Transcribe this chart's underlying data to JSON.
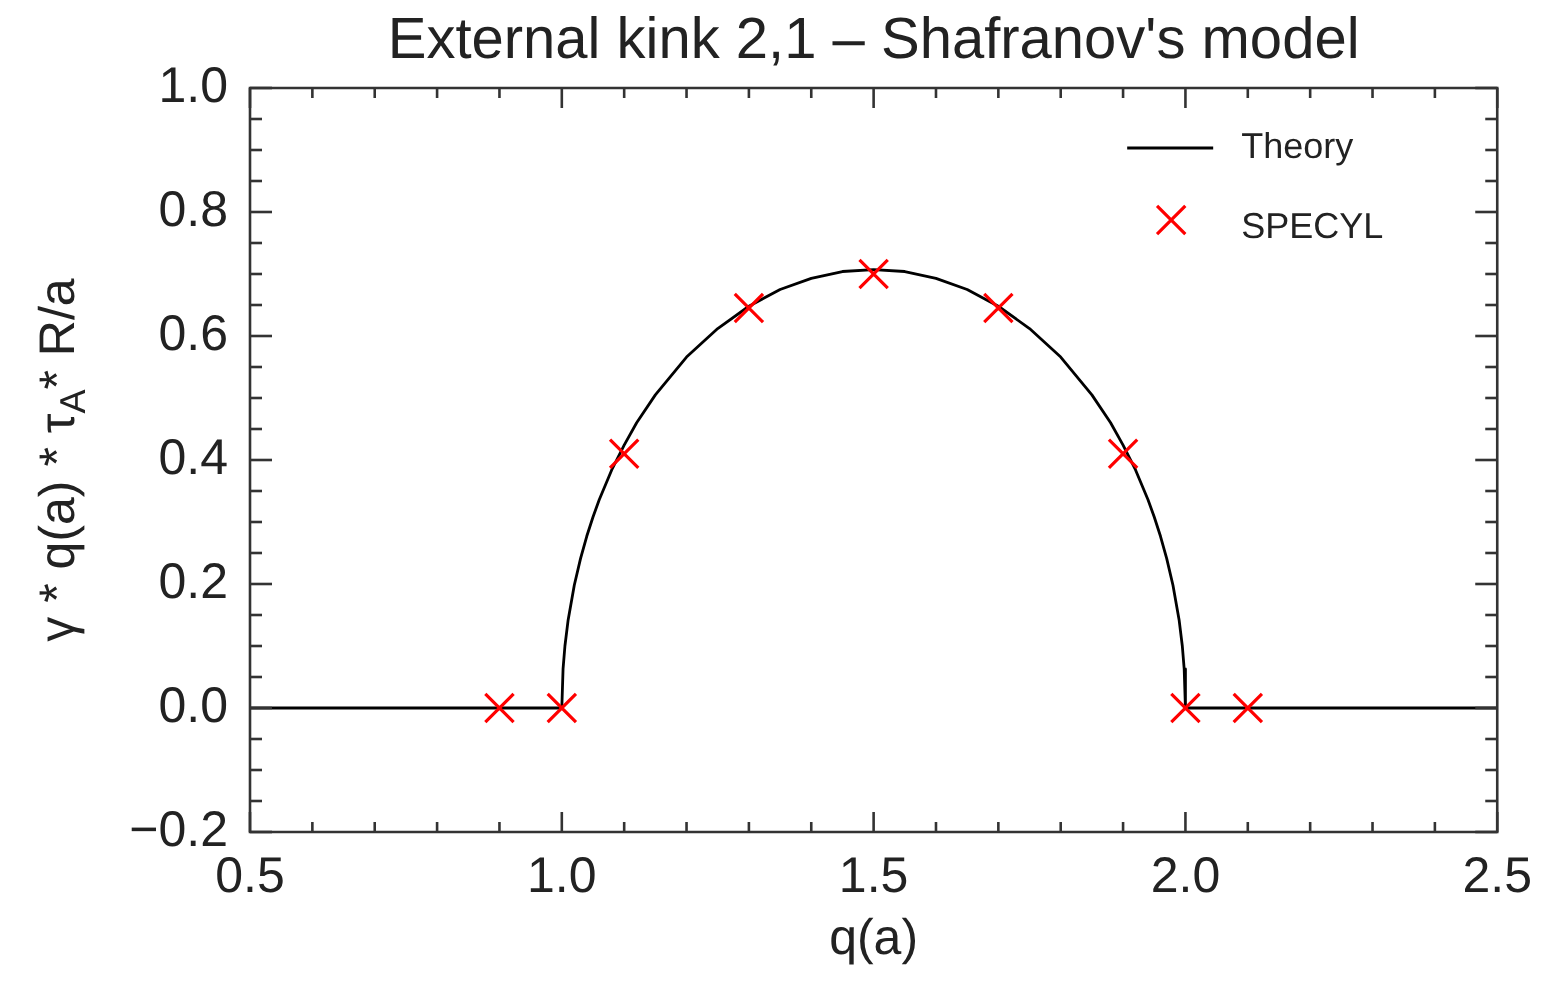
{
  "chart_data": {
    "type": "line",
    "title": "External kink 2,1 – Shafranov's model",
    "xlabel": "q(a)",
    "ylabel": "γ * q(a) * τ$_{A}$* R/a",
    "legend": "top right",
    "xlim": [
      0.5,
      2.5
    ],
    "ylim": [
      -0.2,
      1.0
    ],
    "xticks": [
      0.5,
      {
        "value": 0.6,
        "label": null
      },
      {
        "value": 0.7,
        "label": null
      },
      {
        "value": 0.8,
        "label": null
      },
      {
        "value": 0.9,
        "label": null
      },
      {
        "value": 1,
        "label": "1.0"
      },
      {
        "value": 1.1,
        "label": null
      },
      {
        "value": 1.2,
        "label": null
      },
      {
        "value": 1.3,
        "label": null
      },
      {
        "value": 1.4,
        "label": null
      },
      1.5,
      {
        "value": 1.6,
        "label": null
      },
      {
        "value": 1.7,
        "label": null
      },
      {
        "value": 1.8,
        "label": null
      },
      {
        "value": 1.9,
        "label": null
      },
      {
        "value": 2,
        "label": "2.0"
      },
      {
        "value": 2.1,
        "label": null
      },
      {
        "value": 2.2,
        "label": null
      },
      {
        "value": 2.3,
        "label": null
      },
      {
        "value": 2.4,
        "label": null
      },
      2.5
    ],
    "yticks": [
      {
        "value": -0.2,
        "label": "−0.2"
      },
      {
        "value": -0.15,
        "label": null
      },
      {
        "value": -0.1,
        "label": null
      },
      {
        "value": -0.05,
        "label": null
      },
      {
        "value": 0,
        "label": "0.0"
      },
      {
        "value": 0.05,
        "label": null
      },
      {
        "value": 0.1,
        "label": null
      },
      {
        "value": 0.15,
        "label": null
      },
      0.2,
      {
        "value": 0.25,
        "label": null
      },
      {
        "value": 0.3,
        "label": null
      },
      {
        "value": 0.35,
        "label": null
      },
      0.4,
      {
        "value": 0.45,
        "label": null
      },
      {
        "value": 0.5,
        "label": null
      },
      {
        "value": 0.55,
        "label": null
      },
      0.6,
      {
        "value": 0.65,
        "label": null
      },
      {
        "value": 0.7,
        "label": null
      },
      {
        "value": 0.75,
        "label": null
      },
      0.8,
      {
        "value": 0.85,
        "label": null
      },
      {
        "value": 0.9,
        "label": null
      },
      {
        "value": 0.95,
        "label": null
      },
      {
        "value": 1,
        "label": "1.0"
      }
    ],
    "series": [
      {
        "name": "Theory",
        "color": "#000000",
        "marker": "none",
        "x": [
          0.5,
          1.0,
          1.002,
          1.005,
          1.01,
          1.02,
          1.03,
          1.04,
          1.05,
          1.06,
          1.08,
          1.1,
          1.12,
          1.15,
          1.2,
          1.25,
          1.3,
          1.35,
          1.4,
          1.45,
          1.5,
          1.55,
          1.6,
          1.65,
          1.7,
          1.75,
          1.8,
          1.85,
          1.88,
          1.9,
          1.92,
          1.94,
          1.95,
          1.96,
          1.97,
          1.98,
          1.99,
          1.995,
          1.998,
          2.0,
          2.5
        ],
        "values": [
          0,
          0,
          0.063,
          0.1,
          0.141,
          0.198,
          0.241,
          0.277,
          0.308,
          0.336,
          0.384,
          0.424,
          0.46,
          0.505,
          0.566,
          0.612,
          0.648,
          0.675,
          0.693,
          0.704,
          0.707,
          0.704,
          0.693,
          0.675,
          0.648,
          0.612,
          0.566,
          0.505,
          0.46,
          0.424,
          0.384,
          0.336,
          0.308,
          0.277,
          0.241,
          0.198,
          0.141,
          0.1,
          0.063,
          0,
          0
        ]
      },
      {
        "name": "SPECYL",
        "type": "scatter",
        "color": "#ff0000",
        "marker": "cross",
        "x": [
          0.9,
          1.0,
          1.1,
          1.3,
          1.5,
          1.7,
          1.9,
          2.0,
          2.1
        ],
        "values": [
          0,
          0,
          0.41,
          0.645,
          0.7,
          0.645,
          0.41,
          0,
          0
        ]
      }
    ]
  }
}
